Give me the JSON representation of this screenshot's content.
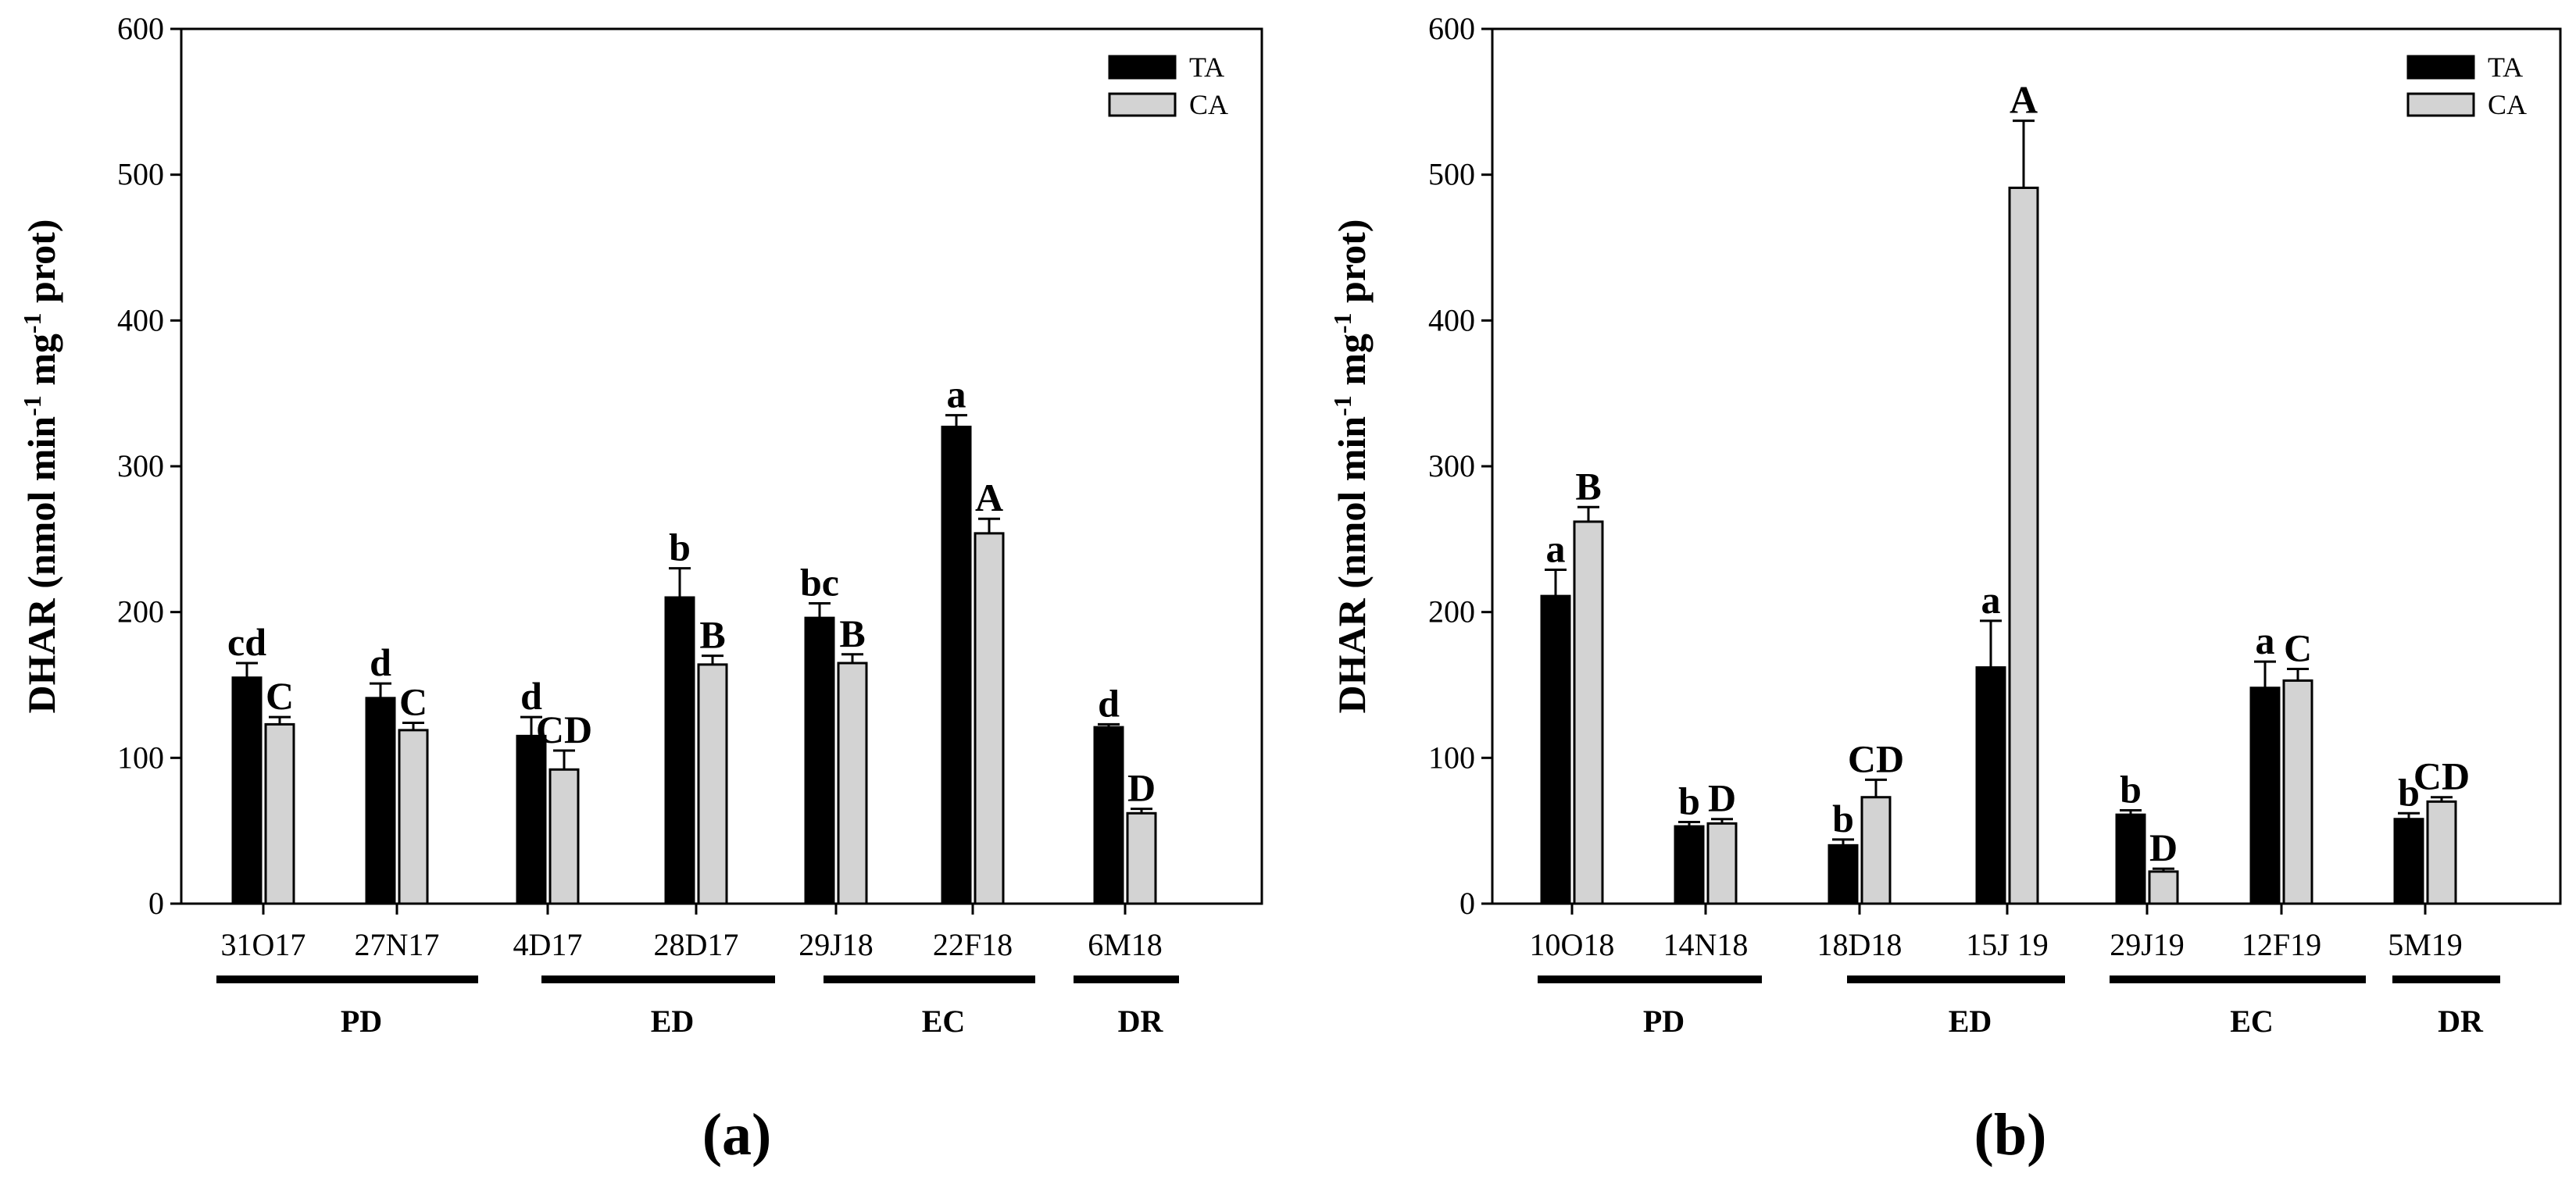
{
  "chart_data": [
    {
      "type": "bar",
      "panel_label": "(a)",
      "ylabel": "DHAR (nmol min-1 mg-1 prot)",
      "ylabel_parts": {
        "pre": "DHAR (nmol min",
        "sup1": "-1",
        "mid": " mg",
        "sup2": "-1",
        "post": " prot)"
      },
      "ylim": [
        0,
        600
      ],
      "yticks": [
        0,
        100,
        200,
        300,
        400,
        500,
        600
      ],
      "legend": [
        "TA",
        "CA"
      ],
      "categories": [
        "31O17",
        "27N17",
        "4D17",
        "28D17",
        "29J18",
        "22F18",
        "6M18"
      ],
      "series": [
        {
          "name": "TA",
          "color": "#000000",
          "values": [
            155,
            141,
            115,
            210,
            196,
            327,
            121
          ],
          "errors": [
            10,
            10,
            13,
            20,
            10,
            8,
            2
          ],
          "letters": [
            "cd",
            "d",
            "d",
            "b",
            "bc",
            "a",
            "d"
          ]
        },
        {
          "name": "CA",
          "color": "#d3d3d3",
          "values": [
            123,
            119,
            92,
            164,
            165,
            254,
            62
          ],
          "errors": [
            5,
            5,
            13,
            6,
            6,
            10,
            3
          ],
          "letters": [
            "C",
            "C",
            "CD",
            "B",
            "B",
            "A",
            "D"
          ]
        }
      ],
      "groups": [
        {
          "label": "PD",
          "start": 0,
          "end": 1
        },
        {
          "label": "ED",
          "start": 2,
          "end": 3
        },
        {
          "label": "EC",
          "start": 4,
          "end": 5
        },
        {
          "label": "DR",
          "start": 6,
          "end": 6
        }
      ]
    },
    {
      "type": "bar",
      "panel_label": "(b)",
      "ylabel": "DHAR (nmol min-1 mg-1 prot)",
      "ylabel_parts": {
        "pre": "DHAR (nmol min",
        "sup1": "-1",
        "mid": " mg",
        "sup2": "-1",
        "post": " prot)"
      },
      "ylim": [
        0,
        600
      ],
      "yticks": [
        0,
        100,
        200,
        300,
        400,
        500,
        600
      ],
      "legend": [
        "TA",
        "CA"
      ],
      "categories": [
        "10O18",
        "14N18",
        "18D18",
        "15J 19",
        "29J19",
        "12F19",
        "5M19"
      ],
      "series": [
        {
          "name": "TA",
          "color": "#000000",
          "values": [
            211,
            53,
            40,
            162,
            61,
            148,
            58
          ],
          "errors": [
            18,
            3,
            4,
            32,
            3,
            18,
            4
          ],
          "letters": [
            "a",
            "b",
            "b",
            "a",
            "b",
            "a",
            "b"
          ]
        },
        {
          "name": "CA",
          "color": "#d3d3d3",
          "values": [
            262,
            55,
            73,
            491,
            22,
            153,
            70
          ],
          "errors": [
            10,
            3,
            12,
            46,
            2,
            8,
            3
          ],
          "letters": [
            "B",
            "D",
            "CD",
            "A",
            "D",
            "C",
            "CD"
          ]
        }
      ],
      "groups": [
        {
          "label": "PD",
          "start": 0,
          "end": 1
        },
        {
          "label": "ED",
          "start": 2,
          "end": 3
        },
        {
          "label": "EC",
          "start": 4,
          "end": 5
        },
        {
          "label": "DR",
          "start": 6,
          "end": 6
        }
      ]
    }
  ]
}
